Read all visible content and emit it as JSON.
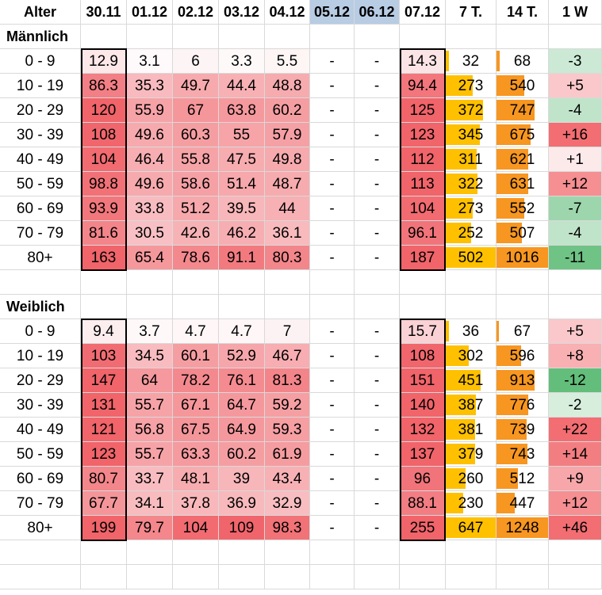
{
  "header": {
    "age": "Alter",
    "dates": [
      "30.11",
      "01.12",
      "02.12",
      "03.12",
      "04.12",
      "05.12",
      "06.12",
      "07.12"
    ],
    "sum7": "7 T.",
    "sum14": "14 T.",
    "week": "1 W"
  },
  "colors": {
    "weekend_header": "#b8cce4",
    "bar7": "#ffc000",
    "bar14": "#f79620",
    "grid": "#d9d9d9"
  },
  "sections": [
    {
      "title": "Männlich",
      "rows": [
        {
          "age": "0 - 9",
          "values": [
            "12.9",
            "3.1",
            "6",
            "3.3",
            "5.5",
            "-",
            "-",
            "14.3"
          ],
          "sum7": "32",
          "sum14": "68",
          "week": "-3"
        },
        {
          "age": "10 - 19",
          "values": [
            "86.3",
            "35.3",
            "49.7",
            "44.4",
            "48.8",
            "-",
            "-",
            "94.4"
          ],
          "sum7": "273",
          "sum14": "540",
          "week": "+5"
        },
        {
          "age": "20 - 29",
          "values": [
            "120",
            "55.9",
            "67",
            "63.8",
            "60.2",
            "-",
            "-",
            "125"
          ],
          "sum7": "372",
          "sum14": "747",
          "week": "-4"
        },
        {
          "age": "30 - 39",
          "values": [
            "108",
            "49.6",
            "60.3",
            "55",
            "57.9",
            "-",
            "-",
            "123"
          ],
          "sum7": "345",
          "sum14": "675",
          "week": "+16"
        },
        {
          "age": "40 - 49",
          "values": [
            "104",
            "46.4",
            "55.8",
            "47.5",
            "49.8",
            "-",
            "-",
            "112"
          ],
          "sum7": "311",
          "sum14": "621",
          "week": "+1"
        },
        {
          "age": "50 - 59",
          "values": [
            "98.8",
            "49.6",
            "58.6",
            "51.4",
            "48.7",
            "-",
            "-",
            "113"
          ],
          "sum7": "322",
          "sum14": "631",
          "week": "+12"
        },
        {
          "age": "60 - 69",
          "values": [
            "93.9",
            "33.8",
            "51.2",
            "39.5",
            "44",
            "-",
            "-",
            "104"
          ],
          "sum7": "273",
          "sum14": "552",
          "week": "-7"
        },
        {
          "age": "70 - 79",
          "values": [
            "81.6",
            "30.5",
            "42.6",
            "46.2",
            "36.1",
            "-",
            "-",
            "96.1"
          ],
          "sum7": "252",
          "sum14": "507",
          "week": "-4"
        },
        {
          "age": "80+",
          "values": [
            "163",
            "65.4",
            "78.6",
            "91.1",
            "80.3",
            "-",
            "-",
            "187"
          ],
          "sum7": "502",
          "sum14": "1016",
          "week": "-11"
        }
      ]
    },
    {
      "title": "Weiblich",
      "rows": [
        {
          "age": "0 - 9",
          "values": [
            "9.4",
            "3.7",
            "4.7",
            "4.7",
            "7",
            "-",
            "-",
            "15.7"
          ],
          "sum7": "36",
          "sum14": "67",
          "week": "+5"
        },
        {
          "age": "10 - 19",
          "values": [
            "103",
            "34.5",
            "60.1",
            "52.9",
            "46.7",
            "-",
            "-",
            "108"
          ],
          "sum7": "302",
          "sum14": "596",
          "week": "+8"
        },
        {
          "age": "20 - 29",
          "values": [
            "147",
            "64",
            "78.2",
            "76.1",
            "81.3",
            "-",
            "-",
            "151"
          ],
          "sum7": "451",
          "sum14": "913",
          "week": "-12"
        },
        {
          "age": "30 - 39",
          "values": [
            "131",
            "55.7",
            "67.1",
            "64.7",
            "59.2",
            "-",
            "-",
            "140"
          ],
          "sum7": "387",
          "sum14": "776",
          "week": "-2"
        },
        {
          "age": "40 - 49",
          "values": [
            "121",
            "56.8",
            "67.5",
            "64.9",
            "59.3",
            "-",
            "-",
            "132"
          ],
          "sum7": "381",
          "sum14": "739",
          "week": "+22"
        },
        {
          "age": "50 - 59",
          "values": [
            "123",
            "55.7",
            "63.3",
            "60.2",
            "61.9",
            "-",
            "-",
            "137"
          ],
          "sum7": "379",
          "sum14": "743",
          "week": "+14"
        },
        {
          "age": "60 - 69",
          "values": [
            "80.7",
            "33.7",
            "48.1",
            "39",
            "43.4",
            "-",
            "-",
            "96"
          ],
          "sum7": "260",
          "sum14": "512",
          "week": "+9"
        },
        {
          "age": "70 - 79",
          "values": [
            "67.7",
            "34.1",
            "37.8",
            "36.9",
            "32.9",
            "-",
            "-",
            "88.1"
          ],
          "sum7": "230",
          "sum14": "447",
          "week": "+12"
        },
        {
          "age": "80+",
          "values": [
            "199",
            "79.7",
            "104",
            "109",
            "98.3",
            "-",
            "-",
            "255"
          ],
          "sum7": "647",
          "sum14": "1248",
          "week": "+46"
        }
      ]
    }
  ]
}
